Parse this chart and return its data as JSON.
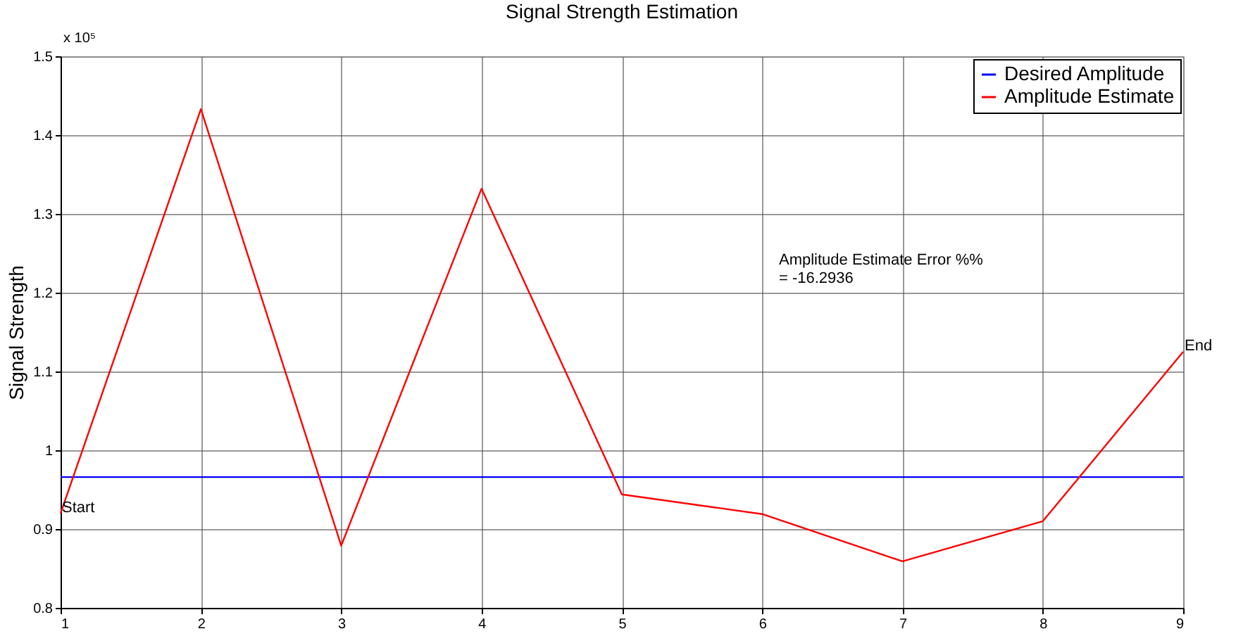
{
  "chart_data": {
    "type": "line",
    "title": "Signal Strength Estimation",
    "ylabel": "Signal Strength",
    "x": [
      1,
      2,
      3,
      4,
      5,
      6,
      7,
      8,
      9
    ],
    "series": [
      {
        "name": "Desired Amplitude",
        "color": "#0000ff",
        "values": [
          0.966,
          0.966,
          0.966,
          0.966,
          0.966,
          0.966,
          0.966,
          0.966,
          0.966
        ]
      },
      {
        "name": "Amplitude Estimate",
        "color": "#ff0000",
        "values": [
          0.92,
          1.433,
          0.879,
          1.332,
          0.944,
          0.919,
          0.859,
          0.91,
          1.125
        ]
      }
    ],
    "xlim": [
      1,
      9
    ],
    "xticks": [
      1,
      2,
      3,
      4,
      5,
      6,
      7,
      8,
      9
    ],
    "ylim": [
      0.8,
      1.5
    ],
    "yticks": [
      0.8,
      0.9,
      1,
      1.1,
      1.2,
      1.3,
      1.4,
      1.5
    ],
    "grid": true,
    "legend": "top right",
    "marker": "none",
    "line_style": "solid",
    "annotations": [
      "x 10⁵",
      {
        "text": "Start",
        "x": 1,
        "y": 0.92
      },
      {
        "text": "End",
        "x": 9,
        "y": 1.125
      },
      "Amplitude Estimate Error %%\n= -16.2936"
    ]
  }
}
